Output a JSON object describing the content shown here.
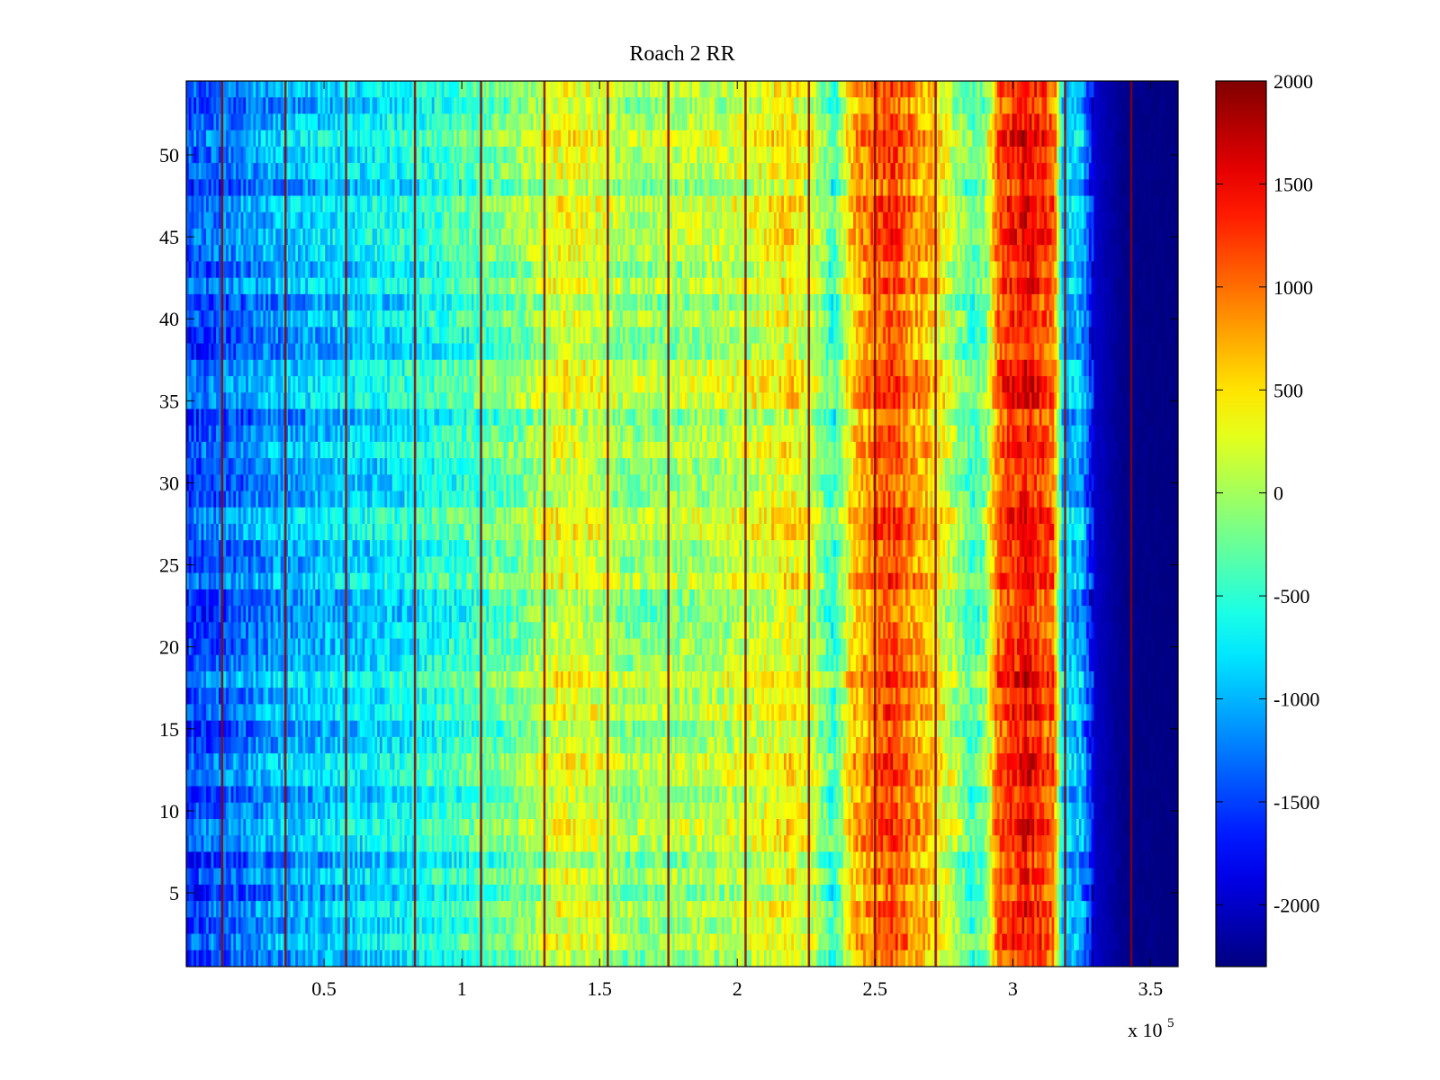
{
  "chart_data": {
    "type": "heatmap",
    "title": "Roach 2 RR",
    "xlabel": "",
    "ylabel": "",
    "x_exponent_label": "x 10",
    "x_exponent_power": "5",
    "xlim": [
      0,
      3.6
    ],
    "ylim": [
      0.5,
      54.5
    ],
    "x_ticks": [
      "0.5",
      "1",
      "1.5",
      "2",
      "2.5",
      "3",
      "3.5"
    ],
    "y_ticks": [
      "5",
      "10",
      "15",
      "20",
      "25",
      "30",
      "35",
      "40",
      "45",
      "50"
    ],
    "colorbar": {
      "range": [
        -2300,
        2000
      ],
      "ticks": [
        "2000",
        "1500",
        "1000",
        "500",
        "0",
        "-500",
        "-1000",
        "-1500",
        "-2000"
      ],
      "colormap": "jet"
    },
    "rows": 54,
    "x_profile": [
      {
        "x": 0.0,
        "v": -1500
      },
      {
        "x": 0.2,
        "v": -1250
      },
      {
        "x": 0.35,
        "v": -1050
      },
      {
        "x": 0.55,
        "v": -900
      },
      {
        "x": 0.8,
        "v": -700
      },
      {
        "x": 1.0,
        "v": -450
      },
      {
        "x": 1.2,
        "v": -200
      },
      {
        "x": 1.35,
        "v": 250
      },
      {
        "x": 1.5,
        "v": 150
      },
      {
        "x": 1.6,
        "v": -100
      },
      {
        "x": 1.8,
        "v": 0
      },
      {
        "x": 2.0,
        "v": 100
      },
      {
        "x": 2.2,
        "v": 400
      },
      {
        "x": 2.28,
        "v": 100
      },
      {
        "x": 2.35,
        "v": -500
      },
      {
        "x": 2.42,
        "v": 600
      },
      {
        "x": 2.55,
        "v": 1200
      },
      {
        "x": 2.7,
        "v": 600
      },
      {
        "x": 2.85,
        "v": -400
      },
      {
        "x": 2.9,
        "v": -200
      },
      {
        "x": 2.95,
        "v": 1100
      },
      {
        "x": 3.05,
        "v": 1450
      },
      {
        "x": 3.15,
        "v": 1000
      },
      {
        "x": 3.18,
        "v": -900
      },
      {
        "x": 3.25,
        "v": -1000
      },
      {
        "x": 3.3,
        "v": -2000
      },
      {
        "x": 3.4,
        "v": -2250
      },
      {
        "x": 3.6,
        "v": -2300
      }
    ],
    "vertical_lines_x": [
      0.13,
      0.36,
      0.58,
      0.83,
      1.07,
      1.3,
      1.53,
      1.75,
      2.03,
      2.26,
      2.5,
      2.72,
      3.19,
      3.43
    ]
  }
}
